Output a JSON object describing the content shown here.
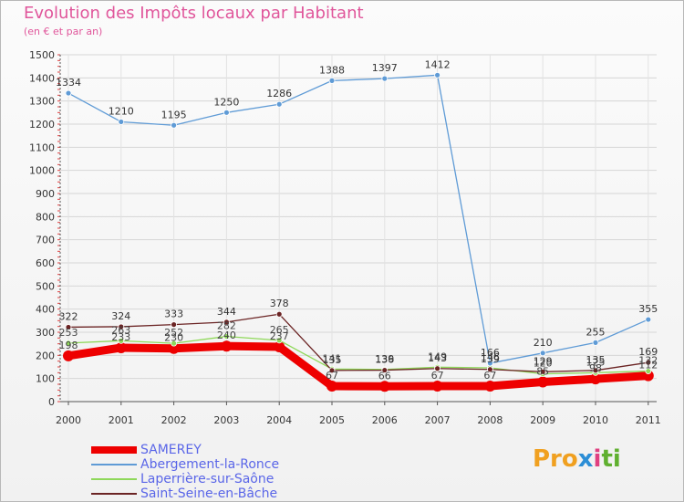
{
  "chart_data": {
    "type": "line",
    "title": "Evolution des Impôts locaux par Habitant",
    "subtitle": "(en € et par an)",
    "xlabel": "",
    "ylabel": "",
    "categories": [
      "2000",
      "2001",
      "2002",
      "2003",
      "2004",
      "2005",
      "2006",
      "2007",
      "2008",
      "2009",
      "2010",
      "2011"
    ],
    "ylim": [
      0,
      1500
    ],
    "yticks": [
      0,
      100,
      200,
      300,
      400,
      500,
      600,
      700,
      800,
      900,
      1000,
      1100,
      1200,
      1300,
      1400,
      1500
    ],
    "series": [
      {
        "name": "SAMEREY",
        "color": "#ee0000",
        "values": [
          198,
          233,
          230,
          240,
          237,
          67,
          66,
          67,
          67,
          85,
          98,
          112
        ]
      },
      {
        "name": "Abergement-la-Ronce",
        "color": "#5f9bd6",
        "values": [
          1334,
          1210,
          1195,
          1250,
          1286,
          1388,
          1397,
          1412,
          166,
          210,
          255,
          355
        ]
      },
      {
        "name": "Laperrière-sur-Saône",
        "color": "#8fd85a",
        "values": [
          253,
          263,
          252,
          282,
          265,
          141,
          139,
          149,
          146,
          120,
          125,
          132
        ]
      },
      {
        "name": "Saint-Seine-en-Bâche",
        "color": "#6b2424",
        "values": [
          322,
          324,
          333,
          344,
          378,
          135,
          136,
          143,
          139,
          129,
          135,
          169
        ]
      }
    ],
    "legend_position": "bottom-left",
    "grid": true
  },
  "legend": {
    "items": [
      {
        "label": "SAMEREY"
      },
      {
        "label": "Abergement-la-Ronce"
      },
      {
        "label": "Laperrière-sur-Saône"
      },
      {
        "label": "Saint-Seine-en-Bâche"
      }
    ]
  },
  "brand": {
    "p1": "Pro",
    "p2": "x",
    "p3": "i",
    "p4": "ti"
  }
}
